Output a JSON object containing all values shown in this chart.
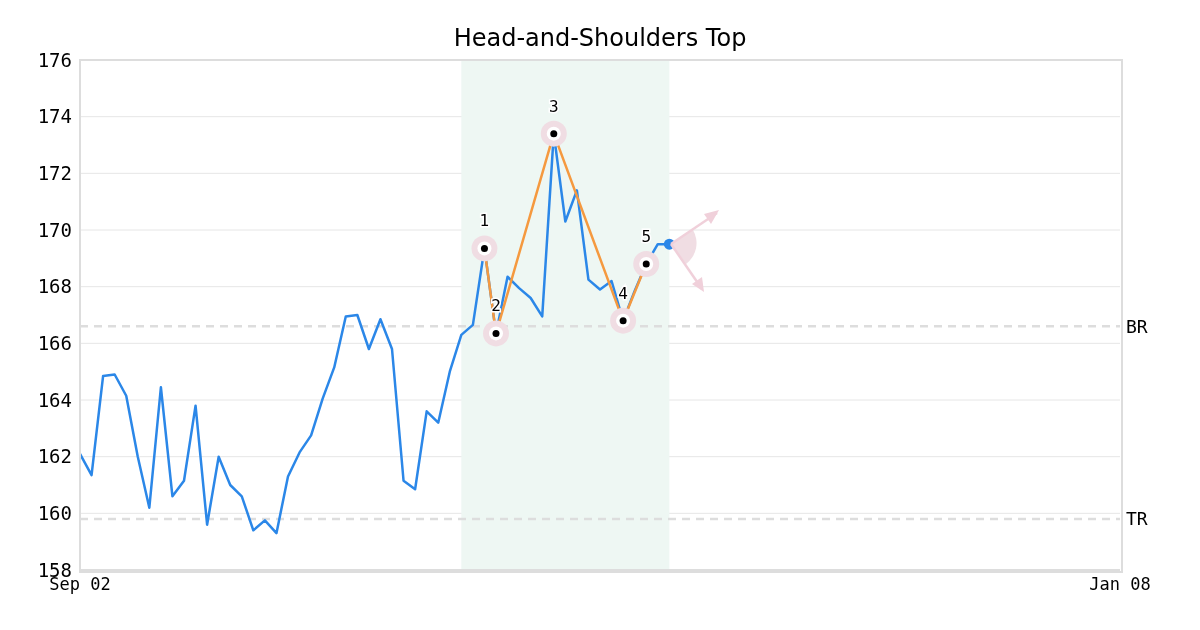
{
  "chart_data": {
    "type": "line",
    "title": "Head-and-Shoulders Top",
    "categories": [
      "Sep 02",
      null,
      null,
      null,
      null,
      null,
      null,
      null,
      null,
      null,
      null,
      null,
      null,
      null,
      null,
      null,
      null,
      null,
      null,
      null,
      null,
      null,
      null,
      null,
      null,
      null,
      null,
      null,
      null,
      null,
      null,
      null,
      null,
      null,
      null,
      null,
      null,
      null,
      null,
      null,
      null,
      null,
      null,
      null,
      null,
      null,
      null,
      null,
      null,
      null,
      null,
      null,
      null,
      null,
      null,
      null,
      null,
      null,
      null,
      null,
      null,
      null,
      null,
      null,
      null,
      null,
      null,
      null,
      null,
      null,
      null,
      null,
      null,
      null,
      null,
      null,
      null,
      null,
      null,
      null,
      null,
      null,
      null,
      null,
      null,
      null,
      null,
      null,
      null,
      null,
      "Jan 08"
    ],
    "ylim": [
      158,
      176
    ],
    "yticks": [
      158,
      160,
      162,
      164,
      166,
      168,
      170,
      172,
      174,
      176
    ],
    "grid": "y",
    "series": [
      {
        "color": "#2b87e8",
        "values": [
          162.1,
          161.35,
          164.85,
          164.9,
          164.15,
          162.0,
          160.2,
          164.45,
          160.6,
          161.15,
          163.8,
          159.6,
          162.0,
          161.0,
          160.6,
          159.4,
          159.75,
          159.3,
          161.3,
          162.15,
          162.75,
          164.05,
          165.15,
          166.95,
          167.0,
          165.8,
          166.85,
          165.8,
          161.15,
          160.85,
          163.6,
          163.2,
          165.0,
          166.3,
          166.65,
          169.35,
          166.35,
          168.35,
          167.95,
          167.6,
          166.95,
          173.4,
          170.3,
          171.4,
          168.25,
          167.9,
          168.2,
          166.8,
          167.85,
          168.8,
          169.5,
          169.5,
          null,
          null,
          null,
          null,
          null,
          null,
          null,
          null,
          null,
          null,
          null,
          null,
          null,
          null,
          null,
          null,
          null,
          null,
          null,
          null,
          null,
          null,
          null,
          null,
          null,
          null,
          null,
          null,
          null,
          null,
          null,
          null,
          null,
          null,
          null,
          null,
          null,
          null,
          null
        ]
      },
      {
        "type": "line",
        "color": "#f5993f",
        "marker": "circle",
        "values": [
          null,
          null,
          null,
          null,
          null,
          null,
          null,
          null,
          null,
          null,
          null,
          null,
          null,
          null,
          null,
          null,
          null,
          null,
          null,
          null,
          null,
          null,
          null,
          null,
          null,
          null,
          null,
          null,
          null,
          null,
          null,
          null,
          null,
          null,
          null,
          169.35,
          166.35,
          null,
          null,
          null,
          null,
          173.4,
          null,
          null,
          null,
          null,
          null,
          166.8,
          null,
          168.8,
          null,
          null,
          null,
          null,
          null,
          null,
          null,
          null,
          null,
          null,
          null,
          null,
          null,
          null,
          null,
          null,
          null,
          null,
          null,
          null,
          null,
          null,
          null,
          null,
          null,
          null,
          null,
          null,
          null,
          null,
          null,
          null,
          null,
          null,
          null,
          null,
          null,
          null,
          null,
          null,
          null
        ]
      },
      {
        "type": "scatter",
        "color": "#2b87e8",
        "values": [
          null,
          null,
          null,
          null,
          null,
          null,
          null,
          null,
          null,
          null,
          null,
          null,
          null,
          null,
          null,
          null,
          null,
          null,
          null,
          null,
          null,
          null,
          null,
          null,
          null,
          null,
          null,
          null,
          null,
          null,
          null,
          null,
          null,
          null,
          null,
          null,
          null,
          null,
          null,
          null,
          null,
          null,
          null,
          null,
          null,
          null,
          null,
          null,
          null,
          null,
          null,
          169.5,
          null,
          null,
          null,
          null,
          null,
          null,
          null,
          null,
          null,
          null,
          null,
          null,
          null,
          null,
          null,
          null,
          null,
          null,
          null,
          null,
          null,
          null,
          null,
          null,
          null,
          null,
          null,
          null,
          null,
          null,
          null,
          null,
          null,
          null,
          null,
          null,
          null,
          null,
          null
        ]
      }
    ],
    "annotations": [
      "1",
      "2",
      "3",
      "4",
      "5"
    ],
    "ref_lines": [
      {
        "axis": "y",
        "value": 166.6,
        "label": "BR",
        "color": "#dddddd",
        "line_style": "dashed"
      },
      {
        "axis": "y",
        "value": 159.8,
        "label": "TR",
        "color": "#dddddd",
        "line_style": "dashed"
      }
    ]
  }
}
